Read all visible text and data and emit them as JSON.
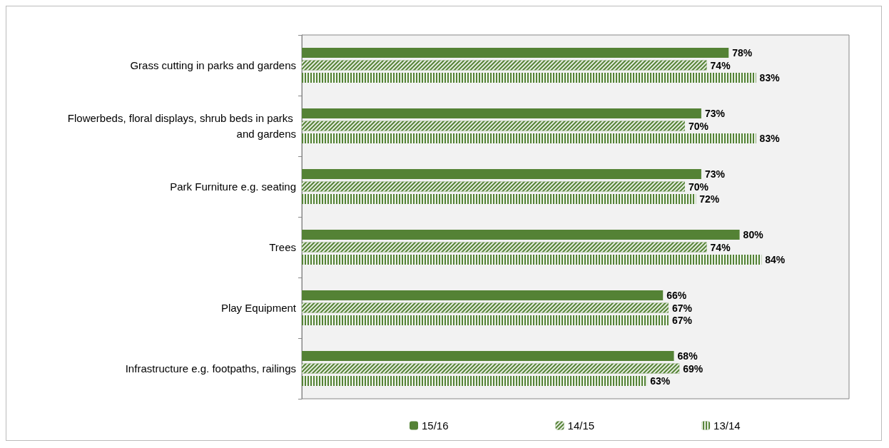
{
  "chart_data": {
    "type": "bar",
    "orientation": "horizontal",
    "categories": [
      "Grass cutting in parks and gardens",
      "Flowerbeds, floral displays, shrub beds in parks and gardens",
      "Park Furniture e.g. seating",
      "Trees",
      "Play Equipment",
      "Infrastructure e.g. footpaths, railings"
    ],
    "series": [
      {
        "name": "15/16",
        "color": "#548235",
        "values": [
          78,
          73,
          73,
          80,
          66,
          68
        ],
        "value_labels": [
          "78%",
          "73%",
          "73%",
          "80%",
          "66%",
          "68%"
        ]
      },
      {
        "name": "14/15",
        "color": "#548235",
        "values": [
          74,
          70,
          70,
          74,
          67,
          69
        ],
        "value_labels": [
          "74%",
          "70%",
          "70%",
          "74%",
          "67%",
          "69%"
        ]
      },
      {
        "name": "13/14",
        "color": "#548235",
        "values": [
          83,
          83,
          72,
          84,
          67,
          63
        ],
        "value_labels": [
          "83%",
          "83%",
          "72%",
          "84%",
          "67%",
          "63%"
        ]
      }
    ],
    "legend": "bottom",
    "grid": false
  }
}
